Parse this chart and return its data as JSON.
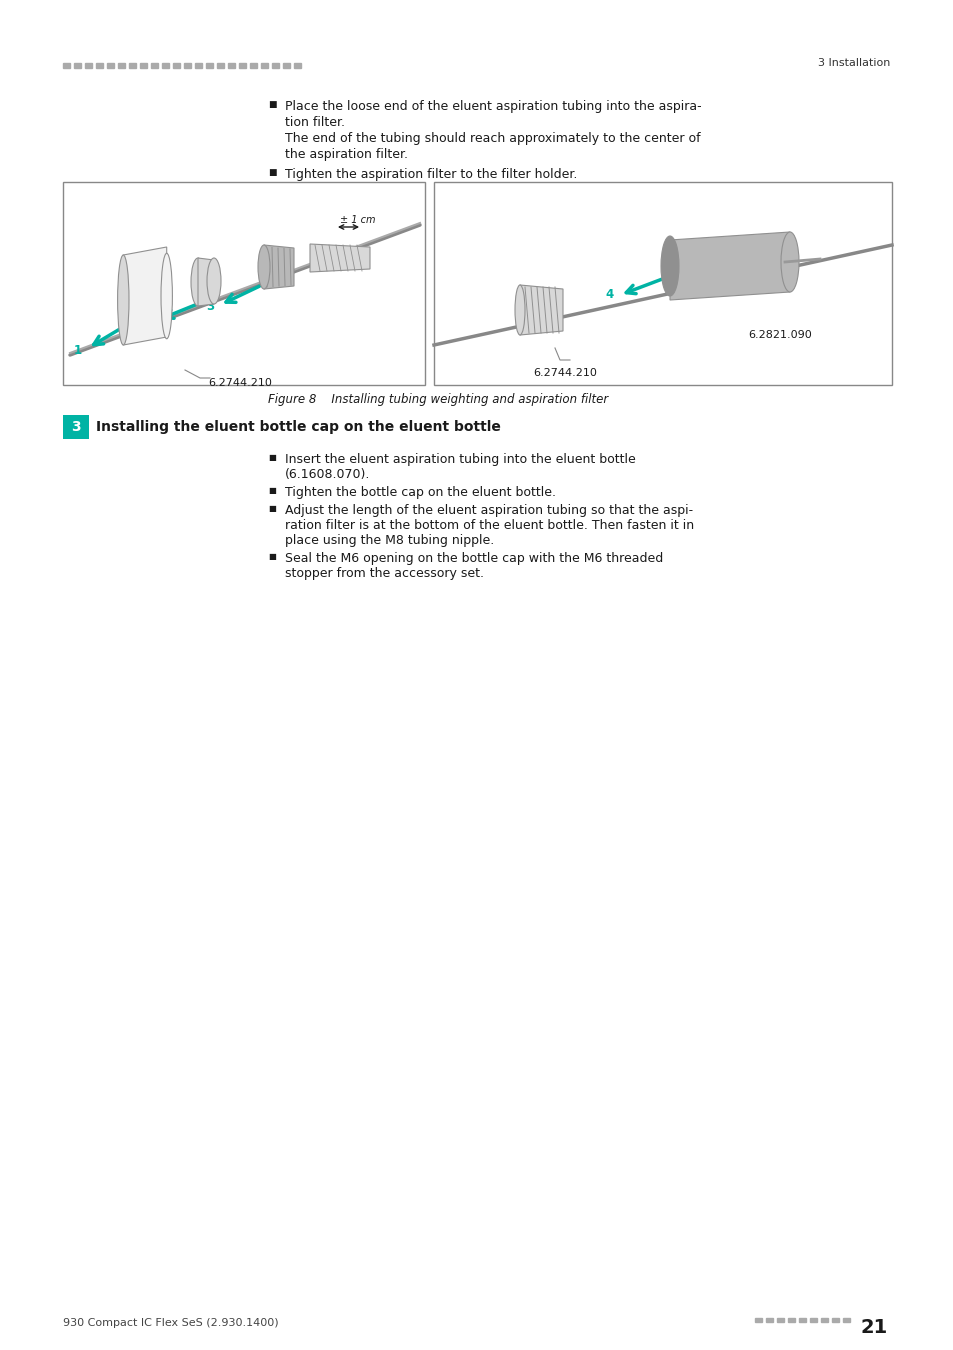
{
  "page_width": 9.54,
  "page_height": 13.5,
  "dpi": 100,
  "bg": "#ffffff",
  "header_bar_color": "#aaaaaa",
  "header_text": "3 Installation",
  "footer_left": "930 Compact IC Flex SeS (2.930.1400)",
  "footer_page": "21",
  "footer_dots_color": "#aaaaaa",
  "teal": "#00b3a4",
  "text_color": "#1a1a1a",
  "gray1": "#f2f2f2",
  "gray2": "#d8d8d8",
  "gray3": "#b8b8b8",
  "gray4": "#909090",
  "gray5": "#707070",
  "box_edge": "#888888",
  "bullet": "■",
  "b_size": 9.0,
  "fig_caption": "Figure 8    Installing tubing weighting and aspiration filter",
  "lbl_left": "6.2744.210",
  "lbl_right1": "6.2821.090",
  "lbl_right2": "6.2744.210",
  "step_num": "3",
  "step_title": "Installing the eluent bottle cap on the eluent bottle",
  "b1l1": "Place the loose end of the eluent aspiration tubing into the aspira-",
  "b1l2": "tion filter.",
  "b1l3": "The end of the tubing should reach approximately to the center of",
  "b1l4": "the aspiration filter.",
  "b2": "Tighten the aspiration filter to the filter holder.",
  "s1l1": "Insert the eluent aspiration tubing into the eluent bottle",
  "s1l2": "(6.1608.070).",
  "s2": "Tighten the bottle cap on the eluent bottle.",
  "s3l1": "Adjust the length of the eluent aspiration tubing so that the aspi-",
  "s3l2": "ration filter is at the bottom of the eluent bottle. Then fasten it in",
  "s3l3": "place using the M8 tubing nipple.",
  "s4l1": "Seal the M6 opening on the bottle cap with the M6 threaded",
  "s4l2": "stopper from the accessory set."
}
